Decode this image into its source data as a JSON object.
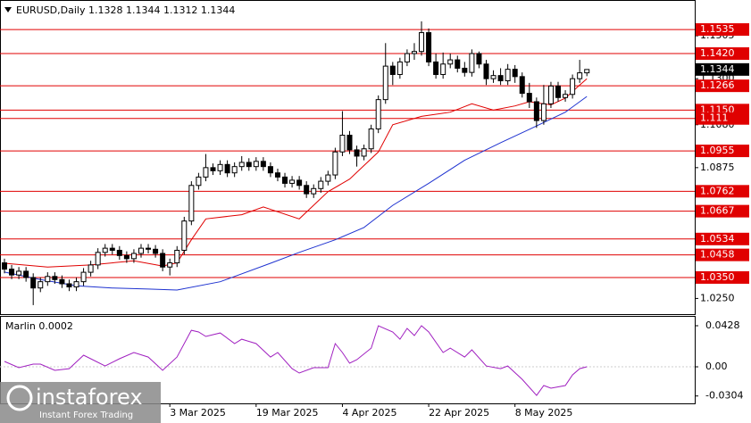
{
  "chart_data": {
    "type": "candlestick",
    "header": "EURUSD,Daily  1.1328 1.1344 1.1312 1.1344",
    "xlim": [
      -0.62,
      96.0
    ],
    "ylim": [
      1.0175,
      1.1676
    ],
    "xticks": [
      {
        "value": 23,
        "label": "3 Mar 2025"
      },
      {
        "value": 35,
        "label": "19 Mar 2025"
      },
      {
        "value": 47,
        "label": "4 Apr 2025"
      },
      {
        "value": 59,
        "label": "22 Apr 2025"
      },
      {
        "value": 71,
        "label": "8 May 2025"
      }
    ],
    "yticks": [
      1.1505,
      {
        "value": 1.13,
        "label": "1.1300"
      },
      {
        "value": 1.108,
        "label": "1.1080"
      },
      1.0875,
      {
        "value": 1.025,
        "label": "1.0250"
      }
    ],
    "levels": [
      1.1535,
      {
        "value": 1.142,
        "label": "1.1420"
      },
      1.1266,
      {
        "value": 1.115,
        "label": "1.1150"
      },
      1.111,
      1.0955,
      1.0762,
      1.0667,
      1.0534,
      1.0458,
      {
        "value": 1.035,
        "label": "1.0350"
      }
    ],
    "level_color": "#e00000",
    "last_price": 1.1344,
    "up_color": "#ffffff",
    "down_color": "#000000",
    "open": [
      1.042,
      1.039,
      1.0362,
      1.038,
      1.035,
      1.03,
      1.033,
      1.0355,
      1.034,
      1.032,
      1.0305,
      1.033,
      1.0375,
      1.041,
      1.047,
      1.049,
      1.048,
      1.0455,
      1.044,
      1.0465,
      1.049,
      1.0485,
      1.0465,
      1.04,
      1.042,
      1.048,
      1.062,
      1.079,
      1.083,
      1.0875,
      1.086,
      1.089,
      1.085,
      1.088,
      1.09,
      1.088,
      1.0905,
      1.088,
      1.085,
      1.083,
      1.08,
      1.0815,
      1.079,
      1.075,
      1.0775,
      1.081,
      1.084,
      1.095,
      1.103,
      1.096,
      1.093,
      1.0965,
      1.106,
      1.12,
      1.136,
      1.132,
      1.138,
      1.142,
      1.143,
      1.152,
      1.138,
      1.132,
      1.137,
      1.139,
      1.135,
      1.133,
      1.142,
      1.137,
      1.13,
      1.1315,
      1.129,
      1.1345,
      1.131,
      1.123,
      1.119,
      1.11,
      1.118,
      1.1265,
      1.121,
      1.1225,
      1.13,
      1.1328
    ],
    "high": [
      1.044,
      1.041,
      1.04,
      1.04,
      1.037,
      1.035,
      1.0375,
      1.0375,
      1.036,
      1.034,
      1.035,
      1.0395,
      1.043,
      1.049,
      1.051,
      1.051,
      1.05,
      1.0475,
      1.0485,
      1.051,
      1.051,
      1.0505,
      1.0485,
      1.044,
      1.05,
      1.064,
      1.081,
      1.085,
      1.094,
      1.0895,
      1.091,
      1.091,
      1.09,
      1.093,
      1.092,
      1.0925,
      1.0925,
      1.09,
      1.087,
      1.085,
      1.0835,
      1.0835,
      1.081,
      1.0795,
      1.083,
      1.086,
      1.097,
      1.1145,
      1.105,
      1.098,
      1.0985,
      1.108,
      1.122,
      1.147,
      1.138,
      1.14,
      1.144,
      1.147,
      1.1574,
      1.154,
      1.142,
      1.1425,
      1.142,
      1.141,
      1.138,
      1.144,
      1.143,
      1.139,
      1.134,
      1.135,
      1.137,
      1.1365,
      1.133,
      1.128,
      1.121,
      1.127,
      1.1285,
      1.1285,
      1.1245,
      1.132,
      1.139,
      1.1344
    ],
    "low": [
      1.037,
      1.0342,
      1.0342,
      1.033,
      1.0218,
      1.028,
      1.031,
      1.032,
      1.03,
      1.0285,
      1.0285,
      1.031,
      1.0355,
      1.039,
      1.045,
      1.046,
      1.0435,
      1.042,
      1.042,
      1.0445,
      1.0465,
      1.0445,
      1.038,
      1.036,
      1.04,
      1.046,
      1.06,
      1.077,
      1.081,
      1.084,
      1.084,
      1.083,
      1.083,
      1.086,
      1.086,
      1.086,
      1.086,
      1.083,
      1.081,
      1.078,
      1.078,
      1.077,
      1.073,
      1.073,
      1.0755,
      1.079,
      1.082,
      1.093,
      1.094,
      1.088,
      1.091,
      1.0945,
      1.104,
      1.118,
      1.127,
      1.13,
      1.136,
      1.139,
      1.141,
      1.136,
      1.13,
      1.13,
      1.135,
      1.133,
      1.131,
      1.131,
      1.135,
      1.127,
      1.128,
      1.127,
      1.127,
      1.128,
      1.121,
      1.116,
      1.1065,
      1.108,
      1.116,
      1.119,
      1.119,
      1.1205,
      1.128,
      1.1312
    ],
    "close": [
      1.039,
      1.0362,
      1.038,
      1.035,
      1.03,
      1.033,
      1.0355,
      1.034,
      1.032,
      1.0305,
      1.033,
      1.0375,
      1.041,
      1.047,
      1.049,
      1.048,
      1.0455,
      1.044,
      1.0465,
      1.049,
      1.0485,
      1.0465,
      1.04,
      1.042,
      1.048,
      1.062,
      1.079,
      1.083,
      1.0875,
      1.086,
      1.089,
      1.085,
      1.088,
      1.09,
      1.088,
      1.0905,
      1.088,
      1.085,
      1.083,
      1.08,
      1.0815,
      1.079,
      1.075,
      1.0775,
      1.081,
      1.084,
      1.095,
      1.103,
      1.096,
      1.093,
      1.0965,
      1.106,
      1.12,
      1.136,
      1.132,
      1.138,
      1.142,
      1.143,
      1.152,
      1.138,
      1.132,
      1.137,
      1.139,
      1.135,
      1.133,
      1.142,
      1.137,
      1.13,
      1.1315,
      1.129,
      1.1345,
      1.131,
      1.123,
      1.119,
      1.11,
      1.118,
      1.1265,
      1.121,
      1.1225,
      1.13,
      1.1328,
      1.1344
    ],
    "series": [
      {
        "color": "#e00000",
        "x": [
          0,
          6,
          12,
          18,
          22,
          24,
          26,
          28,
          33,
          36,
          41,
          45,
          48,
          52,
          54,
          58,
          62,
          65,
          68,
          71,
          73,
          76,
          78,
          80,
          81
        ],
        "values": [
          1.0418,
          1.04,
          1.041,
          1.043,
          1.0405,
          1.042,
          1.053,
          1.063,
          1.065,
          1.0687,
          1.063,
          1.076,
          1.082,
          1.095,
          1.108,
          1.112,
          1.114,
          1.118,
          1.115,
          1.117,
          1.119,
          1.1175,
          1.1207,
          1.127,
          1.13
        ]
      },
      {
        "color": "#1e32d0",
        "x": [
          0,
          5,
          10,
          15,
          20,
          24,
          30,
          37,
          41,
          46,
          50,
          54,
          59,
          64,
          69,
          73,
          78,
          81
        ],
        "values": [
          1.0376,
          1.034,
          1.031,
          1.03,
          1.0295,
          1.029,
          1.033,
          1.0418,
          1.047,
          1.053,
          1.0589,
          1.0695,
          1.08,
          1.091,
          1.0994,
          1.1058,
          1.114,
          1.1215
        ]
      }
    ],
    "indicator": {
      "label": "Marlin 0.0002",
      "color": "#a020c0",
      "ylim": [
        -0.0381,
        0.0521
      ],
      "yticks": [
        0.0428,
        {
          "value": 0,
          "label": "0.00"
        },
        -0.0304
      ],
      "x": [
        0,
        2,
        4,
        5,
        7,
        9,
        11,
        12,
        14,
        16,
        18,
        20,
        22,
        24,
        26,
        27,
        28,
        30,
        32,
        33,
        35,
        37,
        38,
        40,
        41,
        43,
        45,
        46,
        47,
        48,
        49,
        51,
        52,
        54,
        55,
        56,
        57,
        58,
        59,
        61,
        62,
        64,
        65,
        67,
        69,
        70,
        72,
        74,
        75,
        76,
        78,
        79,
        80,
        81
      ],
      "values": [
        0.0056,
        -0.0009,
        0.0028,
        0.0028,
        -0.0037,
        -0.0019,
        0.0121,
        0.0084,
        0.0009,
        0.0084,
        0.0149,
        0.0102,
        -0.0037,
        0.0102,
        0.0381,
        0.0363,
        0.0316,
        0.0353,
        0.0242,
        0.0288,
        0.0242,
        0.0102,
        0.0149,
        -0.0019,
        -0.0065,
        -0.0009,
        -0.0009,
        0.0242,
        0.0149,
        0.0037,
        0.0074,
        0.0195,
        0.0428,
        0.0363,
        0.0288,
        0.04,
        0.0326,
        0.0428,
        0.0363,
        0.0149,
        0.0195,
        0.0102,
        0.0177,
        0.0009,
        -0.0019,
        0.0009,
        -0.013,
        -0.0298,
        -0.0195,
        -0.0223,
        -0.0195,
        -0.0084,
        -0.0019,
        0
      ]
    },
    "watermark": {
      "brand": "instaforex",
      "tagline": "Instant Forex Trading"
    }
  }
}
